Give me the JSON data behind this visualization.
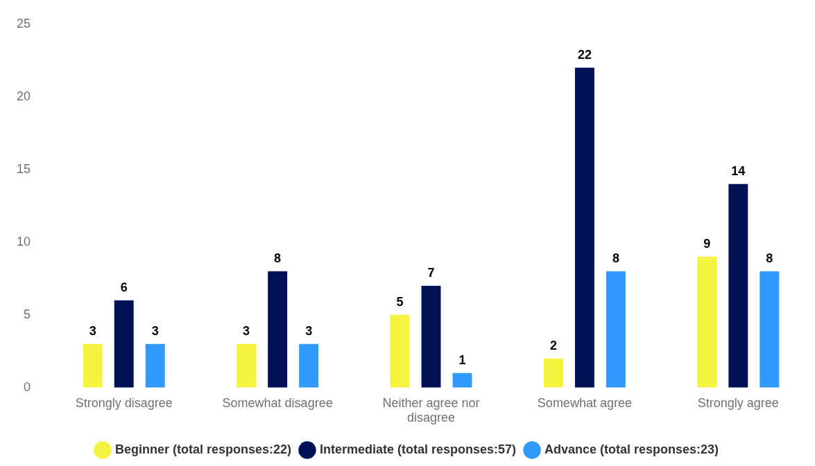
{
  "chart_data": {
    "type": "bar",
    "categories": [
      "Strongly disagree",
      "Somewhat disagree",
      "Neither agree nor disagree",
      "Somewhat agree",
      "Strongly agree"
    ],
    "series": [
      {
        "name": "Beginner (total responses:22)",
        "color": "#f5f33f",
        "values": [
          3,
          3,
          5,
          2,
          9
        ]
      },
      {
        "name": "Intermediate (total responses:57)",
        "color": "#001255",
        "values": [
          6,
          8,
          7,
          22,
          14
        ]
      },
      {
        "name": "Advance (total responses:23)",
        "color": "#3099fd",
        "values": [
          3,
          3,
          1,
          8,
          8
        ]
      }
    ],
    "ylim": [
      0,
      25
    ],
    "yticks": [
      0,
      5,
      10,
      15,
      20,
      25
    ],
    "grid": false,
    "legend": "bottom",
    "data_labels": true
  }
}
